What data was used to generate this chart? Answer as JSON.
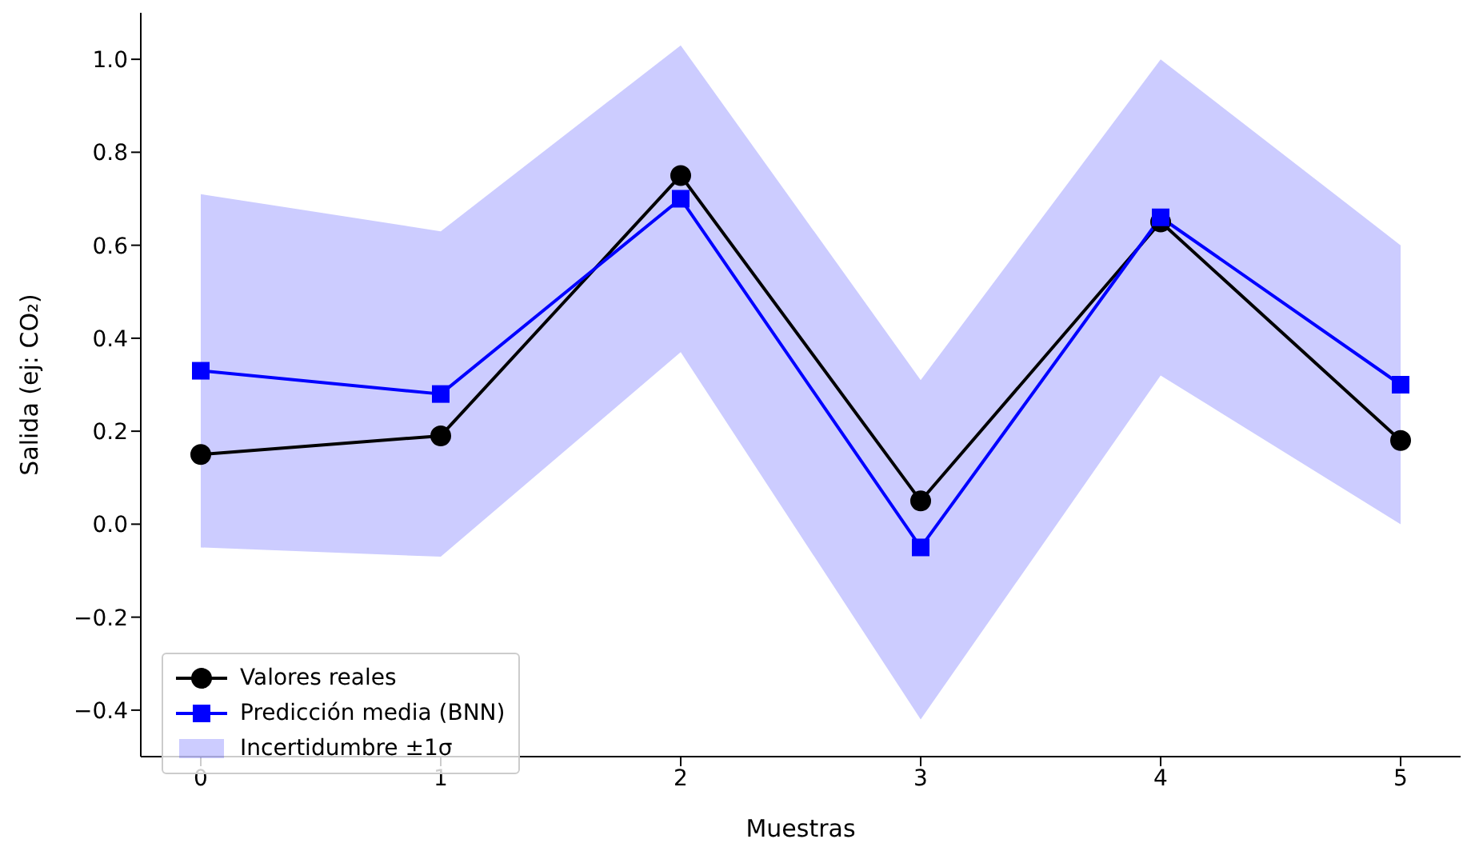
{
  "chart_data": {
    "type": "line",
    "xlabel": "Muestras",
    "ylabel": "Salida (ej: CO₂)",
    "x": [
      0,
      1,
      2,
      3,
      4,
      5
    ],
    "series": [
      {
        "name": "Valores reales",
        "color": "#000000",
        "marker": "circle",
        "values": [
          0.15,
          0.19,
          0.75,
          0.05,
          0.65,
          0.18
        ]
      },
      {
        "name": "Predicción media (BNN)",
        "color": "#0000ff",
        "marker": "square",
        "values": [
          0.33,
          0.28,
          0.7,
          -0.05,
          0.66,
          0.3
        ],
        "lower": [
          -0.05,
          -0.07,
          0.37,
          -0.42,
          0.32,
          0.0
        ],
        "upper": [
          0.71,
          0.63,
          1.03,
          0.31,
          1.0,
          0.6
        ]
      }
    ],
    "annotations": [
      "Incertidumbre ±1σ"
    ],
    "xlim": [
      -0.25,
      5.25
    ],
    "xticks": [
      0,
      1,
      2,
      3,
      4,
      5
    ],
    "ylim": [
      -0.5,
      1.1
    ],
    "yticks": [
      {
        "value": -0.4,
        "label": "−0.4"
      },
      {
        "value": -0.2,
        "label": "−0.2"
      },
      {
        "value": 0,
        "label": "0.0"
      },
      {
        "value": 0.2,
        "label": "0.2"
      },
      {
        "value": 0.4,
        "label": "0.4"
      },
      {
        "value": 0.6,
        "label": "0.6"
      },
      {
        "value": 0.8,
        "label": "0.8"
      },
      {
        "value": 1.0,
        "label": "1.0"
      }
    ],
    "grid": false,
    "legend": "bottom left"
  }
}
